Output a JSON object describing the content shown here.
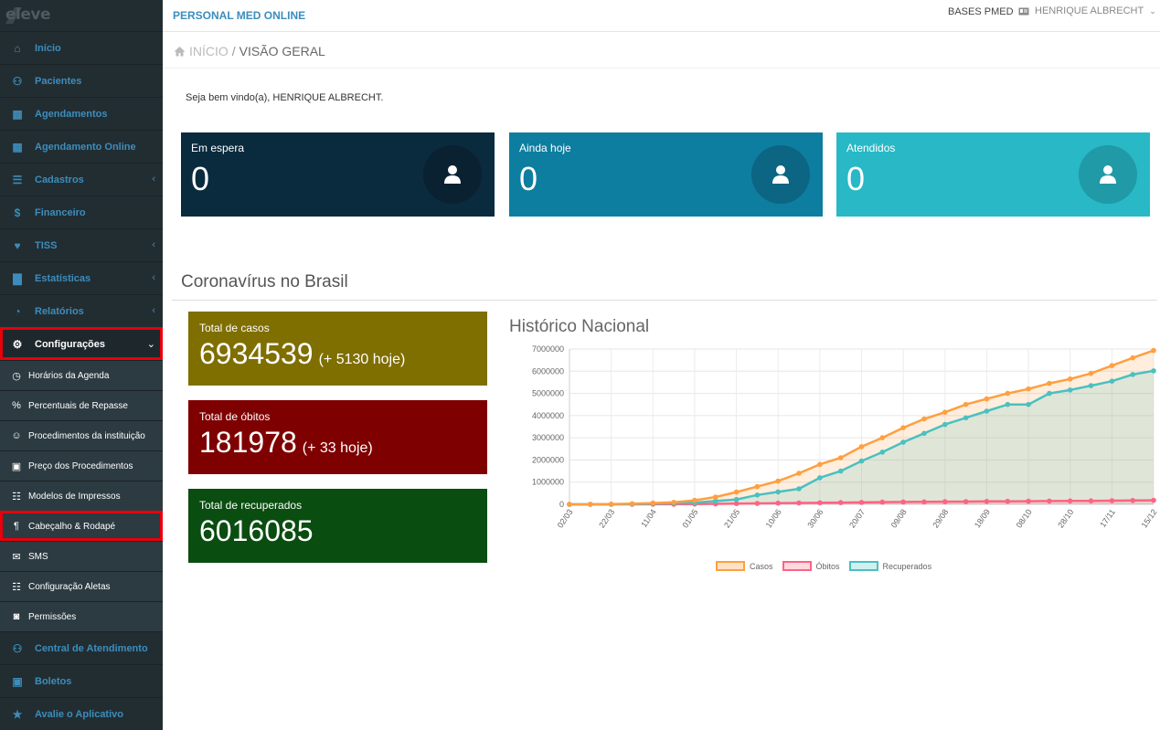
{
  "logo": {
    "text": "eleve"
  },
  "header": {
    "brand": "PERSONAL MED ONLINE",
    "bases": "BASES PMED",
    "user": "HENRIQUE ALBRECHT"
  },
  "sidebar": {
    "items": [
      {
        "label": "Início",
        "icon": "home-icon"
      },
      {
        "label": "Pacientes",
        "icon": "users-icon"
      },
      {
        "label": "Agendamentos",
        "icon": "calendar-icon"
      },
      {
        "label": "Agendamento Online",
        "icon": "calendar-icon"
      },
      {
        "label": "Cadastros",
        "icon": "list-icon"
      },
      {
        "label": "Financeiro",
        "icon": "dollar-icon"
      },
      {
        "label": "TISS",
        "icon": "heartbeat-icon"
      },
      {
        "label": "Estatísticas",
        "icon": "bar-chart-icon"
      },
      {
        "label": "Relatórios",
        "icon": "pie-chart-icon"
      },
      {
        "label": "Configurações",
        "icon": "gear-icon"
      }
    ],
    "sub_items": [
      {
        "label": "Horários da Agenda",
        "icon": "clock-icon"
      },
      {
        "label": "Percentuais de Repasse",
        "icon": "percent-icon"
      },
      {
        "label": "Procedimentos da instituição",
        "icon": "user-icon"
      },
      {
        "label": "Preço dos Procedimentos",
        "icon": "money-icon"
      },
      {
        "label": "Modelos de Impressos",
        "icon": "sitemap-icon"
      },
      {
        "label": "Cabeçalho & Rodapé",
        "icon": "paragraph-icon"
      },
      {
        "label": "SMS",
        "icon": "envelope-icon"
      },
      {
        "label": "Configuração Aletas",
        "icon": "sitemap-icon"
      },
      {
        "label": "Permissões",
        "icon": "lock-icon"
      }
    ],
    "bottom_items": [
      {
        "label": "Central de Atendimento",
        "icon": "users-icon"
      },
      {
        "label": "Boletos",
        "icon": "money-icon"
      },
      {
        "label": "Avalie o Aplicativo",
        "icon": "star-icon"
      }
    ]
  },
  "breadcrumb": {
    "home": "INÍCIO",
    "current": "VISÃO GERAL"
  },
  "welcome": "Seja bem vindo(a), HENRIQUE ALBRECHT.",
  "stats": [
    {
      "label": "Em espera",
      "value": "0",
      "color": "#0a2a3e",
      "circle": "#0a2131"
    },
    {
      "label": "Ainda hoje",
      "value": "0",
      "color": "#0e7ea0",
      "circle": "#0b6583"
    },
    {
      "label": "Atendidos",
      "value": "0",
      "color": "#28b8c6",
      "circle": "#1f9aa6"
    }
  ],
  "covid": {
    "title": "Coronavírus no Brasil",
    "cases": {
      "label": "Total de casos",
      "value": "6934539",
      "today": "(+ 5130 hoje)",
      "color": "#7f6e00"
    },
    "deaths": {
      "label": "Total de óbitos",
      "value": "181978",
      "today": "(+ 33 hoje)",
      "color": "#7f0000"
    },
    "recovered": {
      "label": "Total de recuperados",
      "value": "6016085",
      "color": "#0a4d10"
    }
  },
  "chart_data": {
    "type": "line",
    "title": "Histórico Nacional",
    "ylim": [
      0,
      7000000
    ],
    "yticks": [
      0,
      1000000,
      2000000,
      3000000,
      4000000,
      5000000,
      6000000,
      7000000
    ],
    "xticks": [
      "02/03",
      "22/03",
      "11/04",
      "01/05",
      "21/05",
      "10/06",
      "30/06",
      "20/07",
      "09/08",
      "29/08",
      "18/09",
      "08/10",
      "28/10",
      "17/11",
      "15/12"
    ],
    "grid": true,
    "legend_position": "bottom",
    "series": [
      {
        "name": "Casos",
        "color": "#ff9f40",
        "values": [
          2,
          1000,
          10000,
          30000,
          58000,
          91000,
          180000,
          330000,
          550000,
          800000,
          1050000,
          1400000,
          1800000,
          2100000,
          2600000,
          3000000,
          3450000,
          3850000,
          4150000,
          4500000,
          4750000,
          5000000,
          5200000,
          5450000,
          5650000,
          5900000,
          6250000,
          6600000,
          6934539
        ]
      },
      {
        "name": "Óbitos",
        "color": "#ff6384",
        "values": [
          0,
          20,
          500,
          2000,
          4000,
          6000,
          12000,
          21000,
          32000,
          42000,
          52000,
          63000,
          72000,
          80000,
          88000,
          97000,
          105000,
          112000,
          118000,
          125000,
          131000,
          137000,
          142000,
          147000,
          152000,
          157000,
          164000,
          172000,
          181978
        ]
      },
      {
        "name": "Recuperados",
        "color": "#4bc0c0",
        "values": [
          0,
          0,
          500,
          15000,
          30000,
          50000,
          80000,
          150000,
          220000,
          420000,
          560000,
          700000,
          1200000,
          1500000,
          1950000,
          2350000,
          2800000,
          3200000,
          3600000,
          3900000,
          4200000,
          4500000,
          4500000,
          5000000,
          5150000,
          5350000,
          5550000,
          5850000,
          6016085
        ]
      }
    ]
  }
}
